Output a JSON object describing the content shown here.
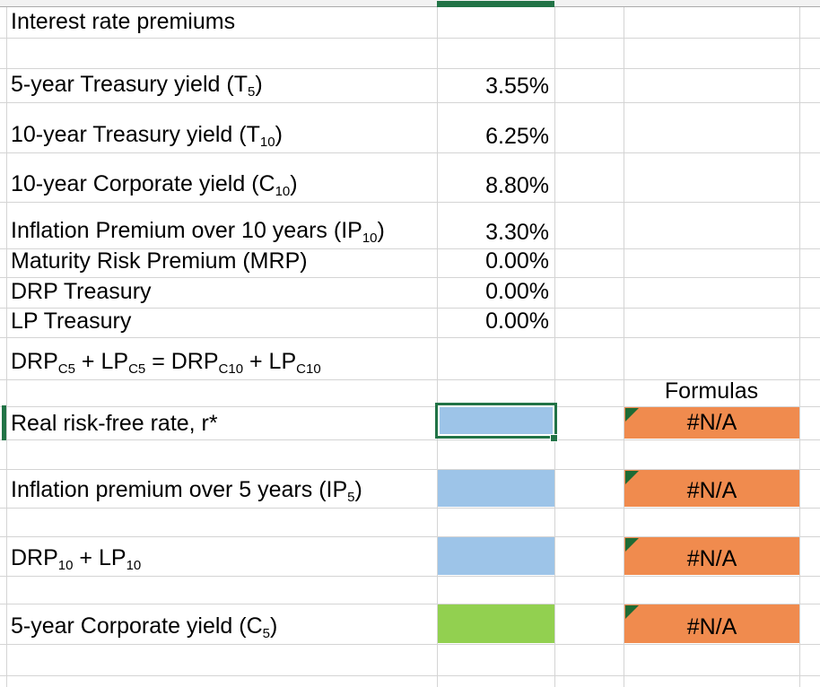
{
  "app": {
    "title": "Interest rate premiums worksheet"
  },
  "colors": {
    "selection_green": "#217346",
    "fill_blue": "#9dc4e8",
    "fill_green": "#92d050",
    "fill_orange": "#f08b4e",
    "error_triangle_green": "#1e6b34"
  },
  "sheet": {
    "rows": [
      {
        "id": "title",
        "label_parts": [
          {
            "text": "Interest rate premiums"
          }
        ]
      },
      {
        "id": "t5",
        "label_parts": [
          {
            "text": "5-year Treasury yield (T"
          },
          {
            "text": "5",
            "sub": true
          },
          {
            "text": ")"
          }
        ],
        "value": "3.55%"
      },
      {
        "id": "t10",
        "label_parts": [
          {
            "text": "10-year Treasury yield (T"
          },
          {
            "text": "10",
            "sub": true
          },
          {
            "text": ")"
          }
        ],
        "value": "6.25%"
      },
      {
        "id": "c10",
        "label_parts": [
          {
            "text": "10-year Corporate yield (C"
          },
          {
            "text": "10",
            "sub": true
          },
          {
            "text": ")"
          }
        ],
        "value": "8.80%"
      },
      {
        "id": "ip10",
        "label_parts": [
          {
            "text": "Inflation Premium over 10 years (IP"
          },
          {
            "text": "10",
            "sub": true
          },
          {
            "text": ")"
          }
        ],
        "value": "3.30%"
      },
      {
        "id": "mrp",
        "label_parts": [
          {
            "text": "Maturity Risk Premium (MRP)"
          }
        ],
        "value": "0.00%"
      },
      {
        "id": "drp-treasury",
        "label_parts": [
          {
            "text": "DRP Treasury"
          }
        ],
        "value": "0.00%"
      },
      {
        "id": "lp-treasury",
        "label_parts": [
          {
            "text": "LP Treasury"
          }
        ],
        "value": "0.00%"
      },
      {
        "id": "equation",
        "label_parts": [
          {
            "text": "DRP"
          },
          {
            "text": "C5",
            "sub": true
          },
          {
            "text": " + LP"
          },
          {
            "text": "C5",
            "sub": true
          },
          {
            "text": " = DRP"
          },
          {
            "text": "C10",
            "sub": true
          },
          {
            "text": " + LP"
          },
          {
            "text": "C10",
            "sub": true
          }
        ]
      },
      {
        "id": "formulas-header",
        "formula_header": "Formulas"
      },
      {
        "id": "rrf",
        "label_parts": [
          {
            "text": "Real risk-free rate, r*"
          }
        ],
        "fill": "blue",
        "selected": true,
        "formula_value": "#N/A",
        "error_marker": true
      },
      {
        "id": "ip5",
        "label_parts": [
          {
            "text": "Inflation premium over 5 years (IP"
          },
          {
            "text": "5",
            "sub": true
          },
          {
            "text": ")"
          }
        ],
        "fill": "blue",
        "formula_value": "#N/A",
        "error_marker": true
      },
      {
        "id": "drp10",
        "label_parts": [
          {
            "text": "DRP"
          },
          {
            "text": "10",
            "sub": true
          },
          {
            "text": " + LP"
          },
          {
            "text": "10",
            "sub": true
          }
        ],
        "fill": "blue",
        "formula_value": "#N/A",
        "error_marker": true
      },
      {
        "id": "c5",
        "label_parts": [
          {
            "text": "5-year Corporate yield (C"
          },
          {
            "text": "5",
            "sub": true
          },
          {
            "text": ")"
          }
        ],
        "fill": "green",
        "formula_value": "#N/A",
        "error_marker": true
      }
    ]
  }
}
